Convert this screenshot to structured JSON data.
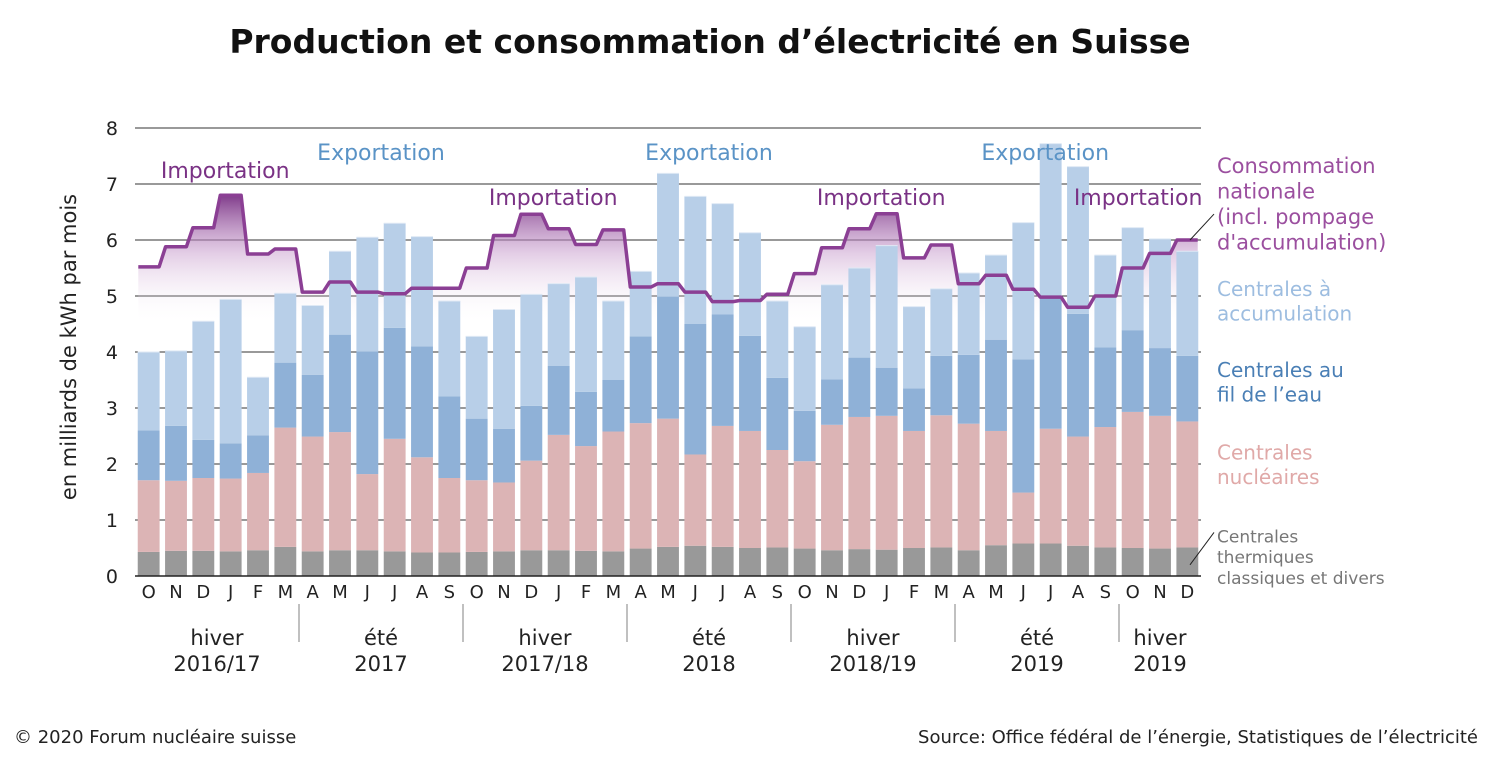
{
  "chart_data": {
    "type": "bar",
    "title": "Production et consommation d’électricité en Suisse",
    "ylabel": "en milliards de kWh par mois",
    "ylim": [
      0,
      8
    ],
    "yticks": [
      "0",
      "1",
      "2",
      "3",
      "4",
      "5",
      "6",
      "7",
      "8"
    ],
    "grid": true,
    "categories": [
      "O",
      "N",
      "D",
      "J",
      "F",
      "M",
      "A",
      "M",
      "J",
      "J",
      "A",
      "S",
      "O",
      "N",
      "D",
      "J",
      "F",
      "M",
      "A",
      "M",
      "J",
      "J",
      "A",
      "S",
      "O",
      "N",
      "D",
      "J",
      "F",
      "M",
      "A",
      "M",
      "J",
      "J",
      "A",
      "S",
      "O",
      "N",
      "D"
    ],
    "stacked": true,
    "series": [
      {
        "name": "Centrales thermiques classiques et divers",
        "color": "#999999",
        "values": [
          0.43,
          0.45,
          0.45,
          0.44,
          0.46,
          0.52,
          0.44,
          0.46,
          0.46,
          0.44,
          0.42,
          0.42,
          0.43,
          0.44,
          0.46,
          0.46,
          0.45,
          0.44,
          0.49,
          0.52,
          0.54,
          0.52,
          0.5,
          0.51,
          0.49,
          0.46,
          0.48,
          0.47,
          0.5,
          0.51,
          0.46,
          0.55,
          0.58,
          0.58,
          0.54,
          0.51,
          0.5,
          0.49,
          0.51
        ]
      },
      {
        "name": "Centrales nucléaires",
        "color": "#dcb4b5",
        "values": [
          1.28,
          1.25,
          1.3,
          1.3,
          1.38,
          2.13,
          2.05,
          2.11,
          1.36,
          2.01,
          1.7,
          1.33,
          1.28,
          1.23,
          1.6,
          2.06,
          1.87,
          2.14,
          2.24,
          2.29,
          1.63,
          2.16,
          2.09,
          1.74,
          1.56,
          2.24,
          2.36,
          2.39,
          2.09,
          2.36,
          2.26,
          2.04,
          0.91,
          2.05,
          1.95,
          2.15,
          2.43,
          2.37,
          2.25
        ]
      },
      {
        "name": "Centrales au fil de l’eau",
        "color": "#8fb1d7",
        "values": [
          0.89,
          0.98,
          0.68,
          0.63,
          0.67,
          1.16,
          1.1,
          1.74,
          2.19,
          1.98,
          1.98,
          1.46,
          1.1,
          0.96,
          0.98,
          1.23,
          0.97,
          0.92,
          1.55,
          2.18,
          2.33,
          1.99,
          1.7,
          1.29,
          0.9,
          0.81,
          1.06,
          0.86,
          0.76,
          1.06,
          1.23,
          1.63,
          2.38,
          2.33,
          2.19,
          1.42,
          1.46,
          1.21,
          1.17
        ]
      },
      {
        "name": "Centrales à accumulation",
        "color": "#b8cfe8",
        "values": [
          1.4,
          1.34,
          2.12,
          2.57,
          1.04,
          1.24,
          1.24,
          1.49,
          2.04,
          1.87,
          1.96,
          1.7,
          1.47,
          2.13,
          1.99,
          1.47,
          2.05,
          1.41,
          1.16,
          2.2,
          2.28,
          1.98,
          1.84,
          1.37,
          1.5,
          1.69,
          1.6,
          2.18,
          1.46,
          1.2,
          1.46,
          1.51,
          2.44,
          2.76,
          2.63,
          1.65,
          1.83,
          1.95,
          1.87
        ]
      },
      {
        "name": "Consommation nationale (incl. pompage d'accumulation)",
        "color": "#8b3f94",
        "kind": "line",
        "values": [
          5.52,
          5.88,
          6.22,
          6.8,
          5.75,
          5.84,
          5.07,
          5.25,
          5.07,
          5.04,
          5.14,
          5.14,
          5.5,
          6.08,
          6.46,
          6.2,
          5.92,
          6.18,
          5.16,
          5.22,
          5.07,
          4.9,
          4.92,
          5.03,
          5.4,
          5.86,
          6.2,
          6.47,
          5.68,
          5.91,
          5.22,
          5.37,
          5.12,
          4.98,
          4.8,
          5.0,
          5.5,
          5.76,
          6.0
        ]
      }
    ],
    "groups": [
      {
        "line1": "hiver",
        "line2": "2016/17",
        "start": 0,
        "end": 5
      },
      {
        "line1": "été",
        "line2": "2017",
        "start": 6,
        "end": 11
      },
      {
        "line1": "hiver",
        "line2": "2017/18",
        "start": 12,
        "end": 17
      },
      {
        "line1": "été",
        "line2": "2018",
        "start": 18,
        "end": 23
      },
      {
        "line1": "hiver",
        "line2": "2018/19",
        "start": 24,
        "end": 29
      },
      {
        "line1": "été",
        "line2": "2019",
        "start": 30,
        "end": 35
      },
      {
        "line1": "hiver",
        "line2": "2019",
        "start": 36,
        "end": 38
      }
    ],
    "annotations": [
      {
        "text": "Importation",
        "kind": "import",
        "anchor": 3.3
      },
      {
        "text": "Exportation",
        "kind": "export",
        "anchor": 9
      },
      {
        "text": "Importation",
        "kind": "import",
        "anchor": 15.3
      },
      {
        "text": "Exportation",
        "kind": "export",
        "anchor": 21
      },
      {
        "text": "Importation",
        "kind": "import",
        "anchor": 27.3
      },
      {
        "text": "Exportation",
        "kind": "export",
        "anchor": 33.3
      },
      {
        "text": "Importation",
        "kind": "import",
        "anchor": 36.7
      }
    ],
    "legend": [
      {
        "lines": [
          "Consommation",
          "nationale",
          "(incl. pompage",
          "d'accumulation)"
        ],
        "color": "#9b4f9f",
        "size": 21,
        "y_value": 7.2,
        "leader_value": 6.0
      },
      {
        "lines": [
          "Centrales à",
          "accumulation"
        ],
        "color": "#9dbde0",
        "size": 20,
        "y_value": 5.0
      },
      {
        "lines": [
          "Centrales au",
          "fil de l’eau"
        ],
        "color": "#4a7fb5",
        "size": 20,
        "y_value": 3.55
      },
      {
        "lines": [
          "Centrales",
          "nucléaires"
        ],
        "color": "#e0a9a8",
        "size": 20,
        "y_value": 2.08
      },
      {
        "lines": [
          "Centrales",
          "thermiques",
          "classiques et divers"
        ],
        "color": "#777777",
        "size": 17,
        "y_value": 0.6,
        "leader_value": 0.2
      }
    ]
  },
  "footer": {
    "copyright": "© 2020 Forum nucléaire suisse",
    "source": "Source: Office fédéral de l’énergie, Statistiques de l’électricité"
  }
}
